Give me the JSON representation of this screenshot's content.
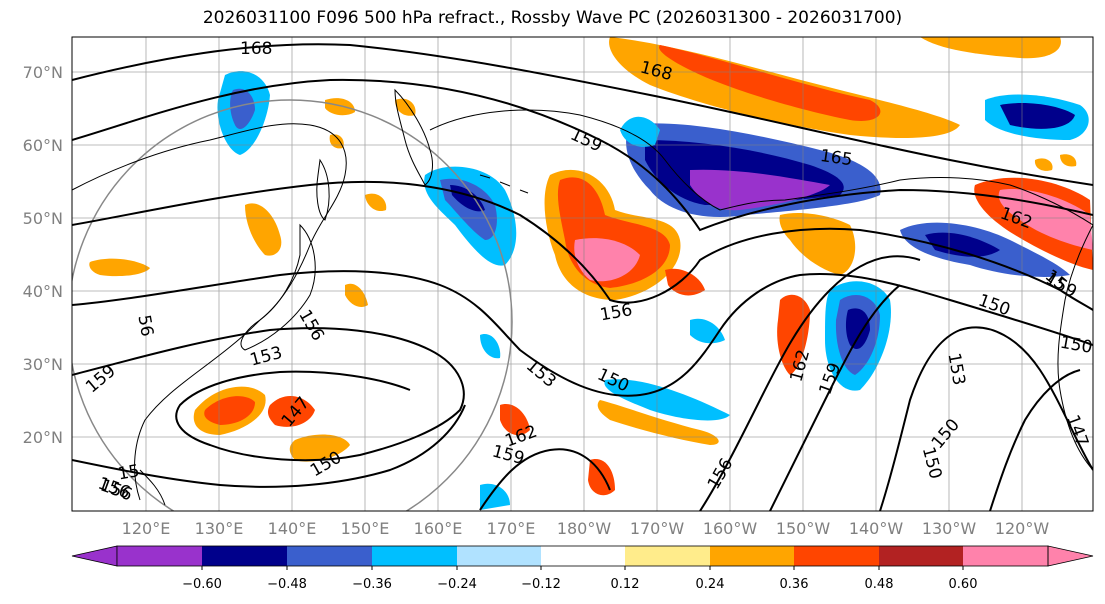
{
  "title": "2026031100 F096 500 hPa refract., Rossby Wave PC (2026031300 - 2026031700)",
  "latitude_labels": [
    "70°N",
    "60°N",
    "50°N",
    "40°N",
    "30°N",
    "20°N"
  ],
  "longitude_labels": [
    "120°E",
    "130°E",
    "140°E",
    "150°E",
    "160°E",
    "170°E",
    "180°W",
    "170°W",
    "160°W",
    "150°W",
    "140°W",
    "130°W",
    "120°W"
  ],
  "colorbar": {
    "tick_labels": [
      "−0.60",
      "−0.48",
      "−0.36",
      "−0.24",
      "−0.12",
      "0.12",
      "0.24",
      "0.36",
      "0.48",
      "0.60"
    ],
    "colors": [
      "#9932CC",
      "#00008B",
      "#3A5FCD",
      "#00BFFF",
      "#B0E2FF",
      "#FFFFFF",
      "#FFEC8B",
      "#FFA500",
      "#FF4500",
      "#B22222",
      "#FF82AB"
    ]
  },
  "contour_labels": [
    "168",
    "168",
    "159",
    "165",
    "162",
    "159",
    "56",
    "156",
    "153",
    "159",
    "147",
    "150",
    "156",
    "153",
    "150",
    "162",
    "159",
    "156",
    "156",
    "162",
    "159",
    "150",
    "153",
    "150",
    "150",
    "147",
    "150",
    "15",
    "156",
    "15"
  ]
}
